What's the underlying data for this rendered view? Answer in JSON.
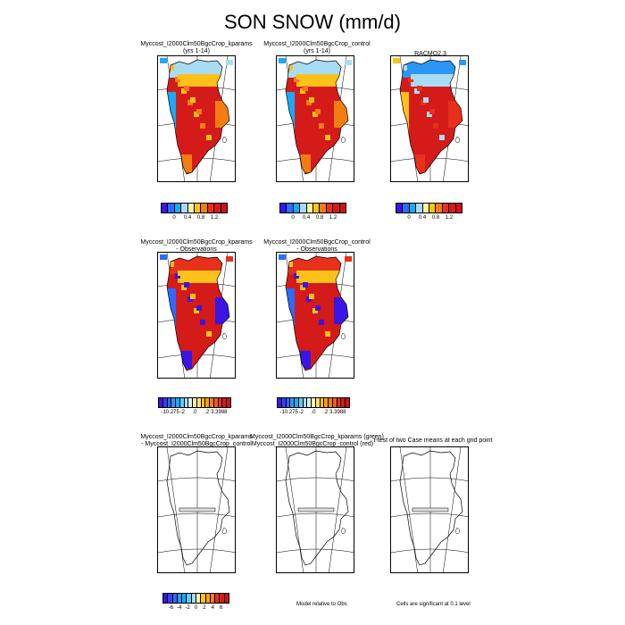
{
  "title": "SON SNOW (mm/d)",
  "panels": {
    "p1": "Myccost_I2000Clm50BgcCrop_kparams",
    "p1_sub": "(yrs 1-14)",
    "p2": "Myccost_I2000Clm50BgcCrop_control",
    "p2_sub": "(yrs 1-14)",
    "p3": "RACMO2.3",
    "p4": "Myccost_I2000Clm50BgcCrop_kparams",
    "p4_sub": "- Observations",
    "p5": "Myccost_I2000Clm50BgcCrop_control",
    "p5_sub": "- Observations",
    "p6": "Myccost_I2000Clm50BgcCrop_kparams",
    "p6_sub": "- Myccost_I2000Clm50BgcCrop_control",
    "p7": "Myccost_I2000Clm50BgcCrop_kparams (green)",
    "p7_sub": "Myccost_I2000Clm50BgcCrop_control (red)",
    "p8": "t-test of two Case means at each grid point"
  },
  "colorbars": {
    "abs": {
      "colors": [
        "#3b14e6",
        "#2b6bff",
        "#1aaaf5",
        "#a8dcf5",
        "#fff5a8",
        "#fdc21a",
        "#f37d12",
        "#e8301a",
        "#d51a1a",
        "#c8141a"
      ],
      "ticks": [
        "0",
        "0.4",
        "0.8",
        "1.2"
      ]
    },
    "diff_obs": {
      "colors": [
        "#3b14e6",
        "#3c3cf0",
        "#2b6bff",
        "#2b96f5",
        "#1aaaf5",
        "#65c8f5",
        "#a8dcf5",
        "#d8eef8",
        "#fff5a8",
        "#fde070",
        "#fdc21a",
        "#f7a014",
        "#f37d12",
        "#ee5c16",
        "#e8301a",
        "#d51a1a",
        "#c8141a"
      ],
      "ticks": [
        "-10.275",
        "-2",
        ".0",
        ".2",
        "3.3988"
      ]
    },
    "diff_case": {
      "colors": [
        "#3b14e6",
        "#3c3cf0",
        "#2b6bff",
        "#2b96f5",
        "#1aaaf5",
        "#65c8f5",
        "#a8dcf5",
        "#fff5a8",
        "#fdc21a",
        "#f7a014",
        "#f37d12",
        "#e8301a",
        "#d51a1a",
        "#c8141a"
      ],
      "ticks": [
        "-6",
        "-4",
        "-2",
        "0",
        "2",
        "4",
        "6"
      ]
    }
  },
  "notes": {
    "model_obs": "Model relative to Obs",
    "significance": "Cells are significant at 0.1 level"
  }
}
